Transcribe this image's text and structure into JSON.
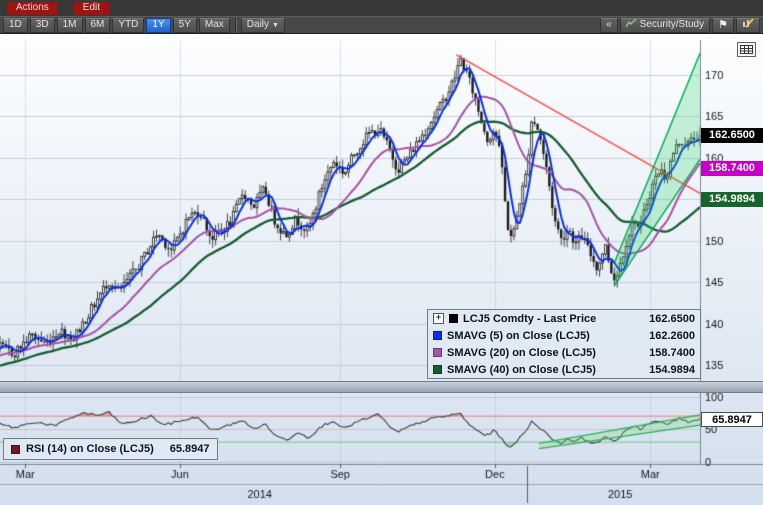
{
  "menu_bar": {
    "actions": "Actions",
    "edit": "Edit"
  },
  "toolbar": {
    "ranges": [
      "1D",
      "3D",
      "1M",
      "6M",
      "YTD",
      "1Y",
      "5Y",
      "Max"
    ],
    "selected_range": "1Y",
    "selected_color": "#1e63cd",
    "frequency": "Daily",
    "collapse_label": "«",
    "security_study": "Security/Study",
    "icons": {
      "flag": "⚑",
      "caret": "▼",
      "expand": "+"
    }
  },
  "legend": {
    "rows": [
      {
        "label": "LCJ5 Comdty - Last Price",
        "value": "162.6500"
      },
      {
        "label": "SMAVG (5) on Close (LCJ5)",
        "value": "162.2600"
      },
      {
        "label": "SMAVG (20) on Close (LCJ5)",
        "value": "158.7400"
      },
      {
        "label": "SMAVG (40) on Close (LCJ5)",
        "value": "154.9894"
      }
    ],
    "rsi_row": {
      "label": "RSI (14) on Close (LCJ5)",
      "value": "65.8947"
    }
  },
  "badges": {
    "last": "162.6500",
    "last_color": "#000000",
    "sma20": "158.7400",
    "sma20_color": "#c400c4",
    "sma40": "154.9894",
    "sma40_color": "#15652d",
    "rsi": "65.8947",
    "rsi_color": "#ffffff"
  },
  "chart_data": {
    "type": "candlestick",
    "symbol": "LCJ5 Comdty",
    "frequency": "Daily",
    "range": "1Y",
    "xticks": [
      {
        "label": "Mar",
        "f": 0.036
      },
      {
        "label": "Jun",
        "f": 0.257
      },
      {
        "label": "Sep",
        "f": 0.486
      },
      {
        "label": "Dec",
        "f": 0.707
      },
      {
        "label": "Mar",
        "f": 0.929
      }
    ],
    "years": [
      {
        "label": "2014",
        "f": 0.371
      },
      {
        "label": "2015",
        "f": 0.886
      }
    ],
    "year_divider_f": 0.753,
    "panels": [
      {
        "name": "price",
        "ylim": [
          133.2,
          174.2
        ],
        "yticks": [
          135,
          140,
          145,
          150,
          155,
          160,
          165,
          170
        ],
        "series": [
          {
            "name": "LCJ5 Comdty - Last Price",
            "type": "candle",
            "last": 162.65,
            "color": "#000000"
          },
          {
            "name": "SMAVG (5) on Close (LCJ5)",
            "type": "sma",
            "window": 5,
            "last": 162.26,
            "color": "#0a2fe8"
          },
          {
            "name": "SMAVG (20) on Close (LCJ5)",
            "type": "sma",
            "window": 20,
            "last": 158.74,
            "color": "#a553a5"
          },
          {
            "name": "SMAVG (40) on Close (LCJ5)",
            "type": "sma",
            "window": 40,
            "last": 154.9894,
            "color": "#155c2e"
          }
        ],
        "price_path": [
          [
            -0.18,
            132.0
          ],
          [
            -0.1,
            134.2
          ],
          [
            -0.04,
            136.2
          ],
          [
            0.0,
            137.2
          ],
          [
            0.02,
            136.4
          ],
          [
            0.045,
            138.6
          ],
          [
            0.065,
            137.6
          ],
          [
            0.085,
            139.2
          ],
          [
            0.105,
            138.2
          ],
          [
            0.13,
            141.6
          ],
          [
            0.155,
            145.2
          ],
          [
            0.17,
            143.8
          ],
          [
            0.2,
            147.2
          ],
          [
            0.225,
            150.9
          ],
          [
            0.245,
            148.8
          ],
          [
            0.27,
            152.9
          ],
          [
            0.285,
            153.6
          ],
          [
            0.302,
            150.3
          ],
          [
            0.33,
            152.2
          ],
          [
            0.347,
            155.9
          ],
          [
            0.362,
            154.1
          ],
          [
            0.378,
            156.3
          ],
          [
            0.393,
            152.3
          ],
          [
            0.408,
            150.6
          ],
          [
            0.423,
            152.6
          ],
          [
            0.44,
            151.1
          ],
          [
            0.462,
            157.1
          ],
          [
            0.477,
            159.6
          ],
          [
            0.492,
            158.1
          ],
          [
            0.507,
            160.6
          ],
          [
            0.527,
            162.9
          ],
          [
            0.542,
            163.4
          ],
          [
            0.557,
            160.9
          ],
          [
            0.568,
            158.6
          ],
          [
            0.583,
            160.1
          ],
          [
            0.602,
            162.6
          ],
          [
            0.617,
            164.6
          ],
          [
            0.632,
            166.6
          ],
          [
            0.647,
            169.1
          ],
          [
            0.658,
            171.9
          ],
          [
            0.667,
            170.1
          ],
          [
            0.677,
            167.6
          ],
          [
            0.687,
            164.6
          ],
          [
            0.697,
            162.1
          ],
          [
            0.707,
            163.6
          ],
          [
            0.717,
            159.1
          ],
          [
            0.724,
            152.1
          ],
          [
            0.732,
            150.1
          ],
          [
            0.742,
            154.6
          ],
          [
            0.752,
            158.1
          ],
          [
            0.76,
            164.9
          ],
          [
            0.77,
            163.1
          ],
          [
            0.782,
            158.1
          ],
          [
            0.792,
            152.6
          ],
          [
            0.802,
            150.1
          ],
          [
            0.812,
            151.6
          ],
          [
            0.822,
            149.6
          ],
          [
            0.832,
            150.6
          ],
          [
            0.842,
            148.6
          ],
          [
            0.854,
            146.6
          ],
          [
            0.864,
            149.6
          ],
          [
            0.874,
            146.1
          ],
          [
            0.88,
            145.3
          ],
          [
            0.887,
            147.6
          ],
          [
            0.897,
            150.6
          ],
          [
            0.907,
            152.6
          ],
          [
            0.914,
            151.1
          ],
          [
            0.922,
            154.1
          ],
          [
            0.932,
            156.6
          ],
          [
            0.942,
            158.6
          ],
          [
            0.952,
            157.6
          ],
          [
            0.962,
            160.6
          ],
          [
            0.972,
            162.1
          ],
          [
            0.982,
            161.6
          ],
          [
            0.992,
            162.4
          ],
          [
            1.0,
            162.65
          ]
        ],
        "trendline": {
          "from": [
            0.652,
            172.4
          ],
          "to": [
            1.0,
            155.7
          ],
          "color": "#ff4545"
        },
        "channel": {
          "lower": [
            [
              0.878,
              144.6
            ],
            [
              1.0,
              159.8
            ]
          ],
          "upper": [
            [
              0.878,
              147.4
            ],
            [
              1.0,
              172.6
            ]
          ],
          "fill": "rgba(40,210,100,0.25)",
          "stroke": "#00a651"
        }
      },
      {
        "name": "rsi",
        "ylim": [
          0,
          100
        ],
        "yticks": [
          0,
          50,
          100
        ],
        "overbought": 70,
        "oversold": 30,
        "overbought_color": "#ef7a7a",
        "oversold_color": "#7cc47c",
        "line_color": "#3a3f45",
        "series": [
          {
            "name": "RSI (14) on Close (LCJ5)",
            "window": 14,
            "last": 65.8947,
            "color": "#6b1c1c"
          }
        ],
        "rsi_path": [
          [
            0.0,
            58
          ],
          [
            0.02,
            52
          ],
          [
            0.05,
            61
          ],
          [
            0.08,
            55
          ],
          [
            0.1,
            67
          ],
          [
            0.12,
            75
          ],
          [
            0.14,
            71
          ],
          [
            0.155,
            76
          ],
          [
            0.175,
            57
          ],
          [
            0.195,
            63
          ],
          [
            0.215,
            70
          ],
          [
            0.235,
            56
          ],
          [
            0.255,
            62
          ],
          [
            0.27,
            66
          ],
          [
            0.285,
            68
          ],
          [
            0.3,
            48
          ],
          [
            0.32,
            53
          ],
          [
            0.345,
            64
          ],
          [
            0.362,
            50
          ],
          [
            0.378,
            58
          ],
          [
            0.395,
            39
          ],
          [
            0.41,
            33
          ],
          [
            0.425,
            46
          ],
          [
            0.44,
            37
          ],
          [
            0.462,
            56
          ],
          [
            0.477,
            63
          ],
          [
            0.492,
            50
          ],
          [
            0.507,
            60
          ],
          [
            0.527,
            67
          ],
          [
            0.542,
            73
          ],
          [
            0.557,
            52
          ],
          [
            0.568,
            45
          ],
          [
            0.583,
            53
          ],
          [
            0.602,
            61
          ],
          [
            0.617,
            66
          ],
          [
            0.632,
            69
          ],
          [
            0.647,
            72
          ],
          [
            0.658,
            74
          ],
          [
            0.667,
            60
          ],
          [
            0.677,
            51
          ],
          [
            0.687,
            44
          ],
          [
            0.697,
            40
          ],
          [
            0.707,
            49
          ],
          [
            0.717,
            34
          ],
          [
            0.724,
            26
          ],
          [
            0.732,
            22
          ],
          [
            0.742,
            36
          ],
          [
            0.752,
            49
          ],
          [
            0.76,
            62
          ],
          [
            0.77,
            54
          ],
          [
            0.782,
            41
          ],
          [
            0.792,
            33
          ],
          [
            0.802,
            28
          ],
          [
            0.812,
            36
          ],
          [
            0.822,
            31
          ],
          [
            0.832,
            36
          ],
          [
            0.842,
            31
          ],
          [
            0.854,
            27
          ],
          [
            0.864,
            41
          ],
          [
            0.874,
            31
          ],
          [
            0.88,
            29
          ],
          [
            0.887,
            41
          ],
          [
            0.897,
            51
          ],
          [
            0.907,
            56
          ],
          [
            0.914,
            49
          ],
          [
            0.922,
            56
          ],
          [
            0.932,
            60
          ],
          [
            0.942,
            62
          ],
          [
            0.952,
            56
          ],
          [
            0.962,
            63
          ],
          [
            0.972,
            66
          ],
          [
            0.982,
            61
          ],
          [
            0.992,
            64
          ],
          [
            1.0,
            65.8947
          ]
        ],
        "channel": {
          "lower": [
            [
              0.77,
              20
            ],
            [
              1.0,
              56
            ]
          ],
          "upper": [
            [
              0.77,
              28
            ],
            [
              1.0,
              72
            ]
          ],
          "fill": "rgba(120,220,120,0.30)",
          "stroke": "#2fae5c"
        }
      }
    ]
  }
}
